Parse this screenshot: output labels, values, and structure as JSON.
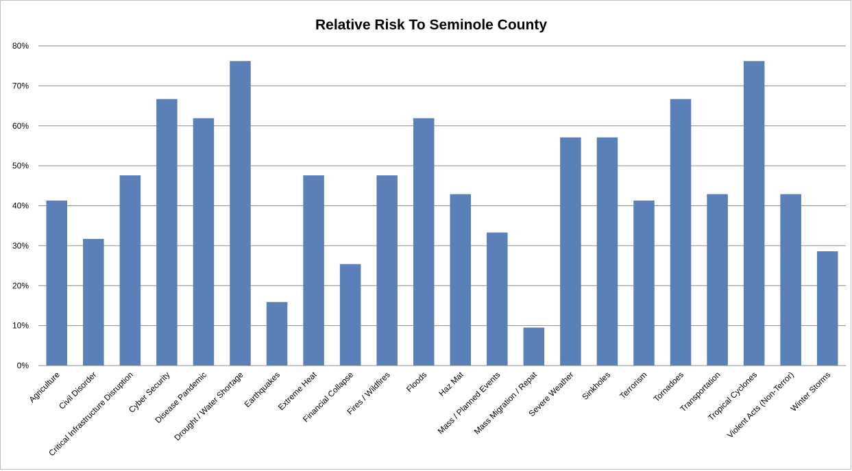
{
  "chart_data": {
    "type": "bar",
    "title": "Relative Risk To Seminole County",
    "xlabel": "",
    "ylabel": "",
    "ylim": [
      0,
      0.8
    ],
    "y_ticks": [
      0,
      0.1,
      0.2,
      0.3,
      0.4,
      0.5,
      0.6,
      0.7,
      0.8
    ],
    "y_tick_labels": [
      "0%",
      "10%",
      "20%",
      "30%",
      "40%",
      "50%",
      "60%",
      "70%",
      "80%"
    ],
    "grid": true,
    "legend": "none",
    "bar_color": "#5b80b8",
    "categories": [
      "Agriculture",
      "Civil Disorder",
      "Critical Infrastructure Disruption",
      "Cyber Security",
      "Disease Pandemic",
      "Drought / Water Shortage",
      "Earthquakes",
      "Extreme Heat",
      "Financial Collapse",
      "Fires / Wildfires",
      "Floods",
      "Haz Mat",
      "Mass / Planned Events",
      "Mass Migration / Repat",
      "Severe Weather",
      "Sinkholes",
      "Terrorism",
      "Tornadoes",
      "Transportation",
      "Tropical Cyclones",
      "Violent Acts (Non-Terror)",
      "Winter Storms"
    ],
    "values": [
      0.413,
      0.317,
      0.476,
      0.667,
      0.619,
      0.762,
      0.159,
      0.476,
      0.254,
      0.476,
      0.619,
      0.429,
      0.333,
      0.095,
      0.571,
      0.571,
      0.413,
      0.667,
      0.429,
      0.762,
      0.429,
      0.286
    ]
  }
}
